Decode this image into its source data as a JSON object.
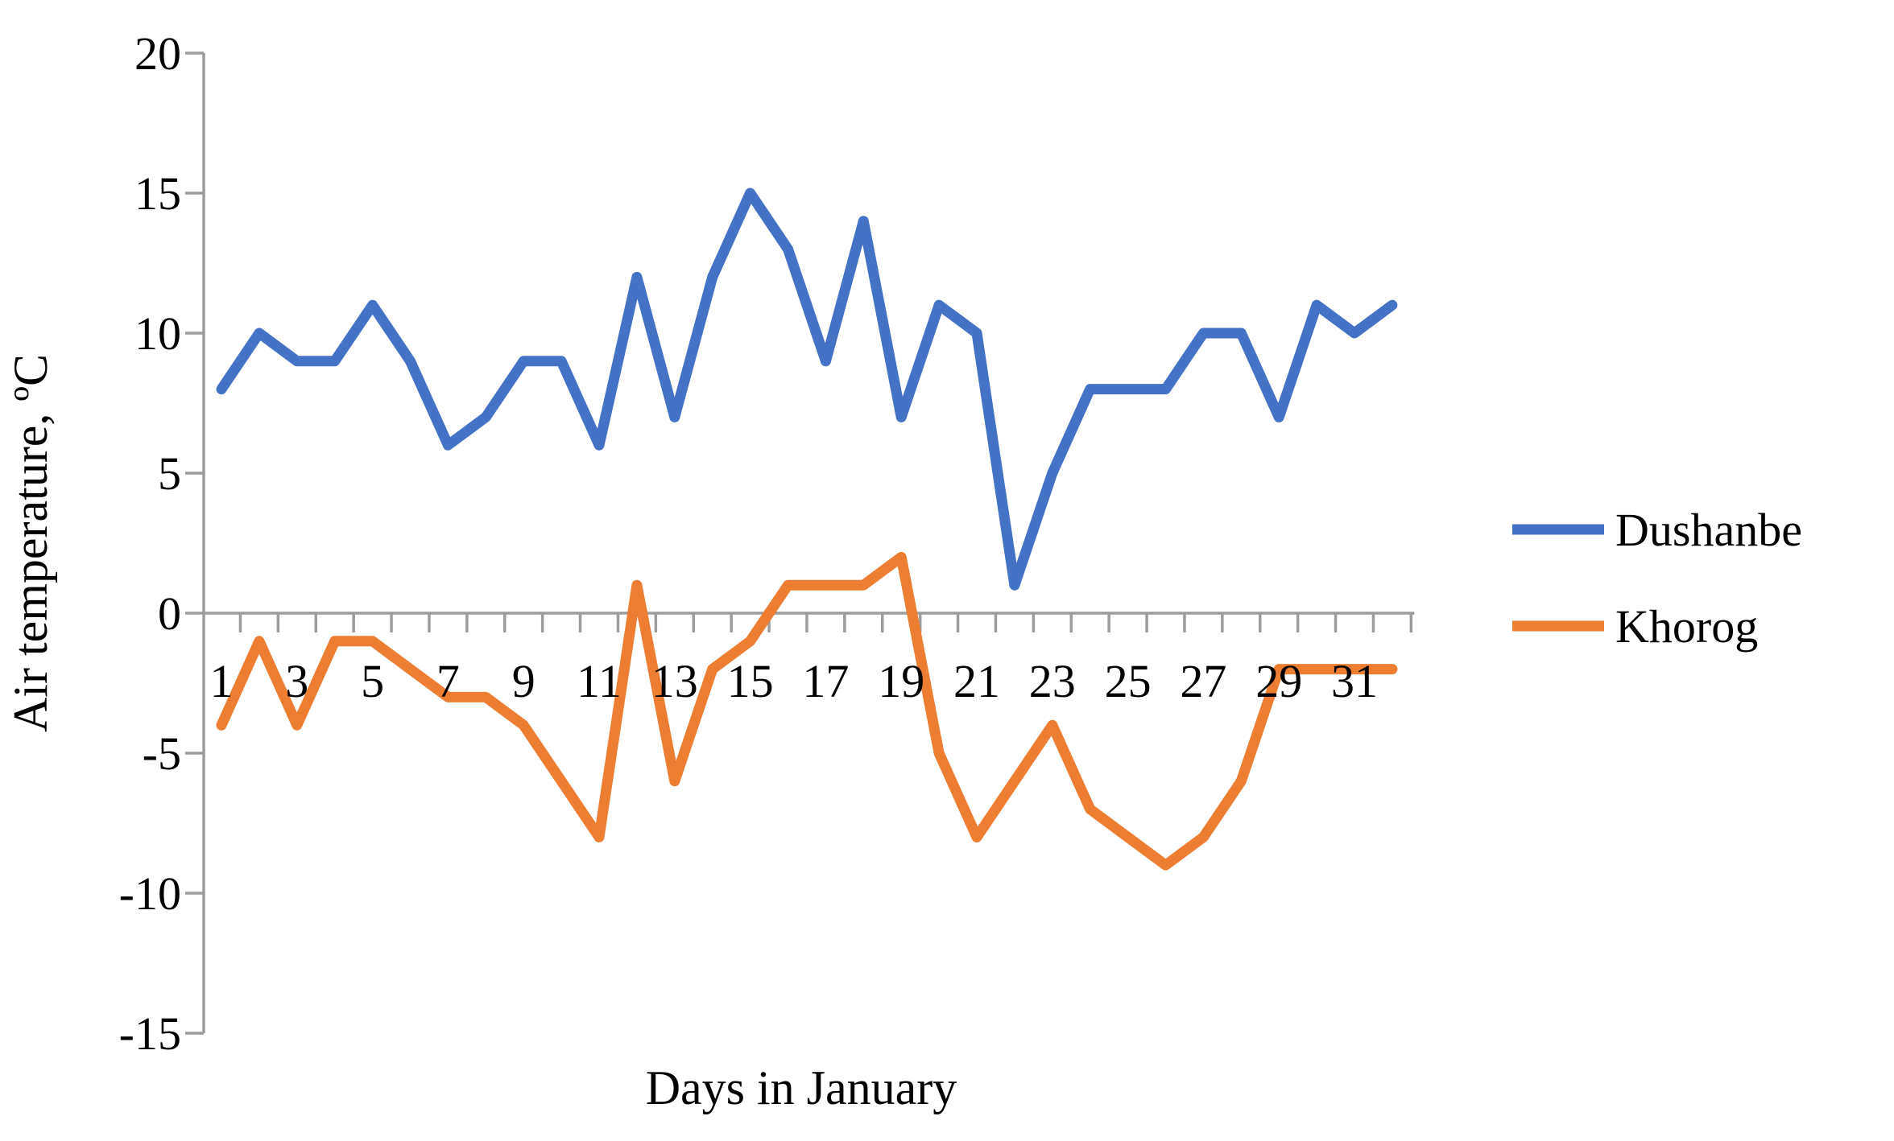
{
  "chart_data": {
    "type": "line",
    "title": "",
    "xlabel": "Days in January",
    "ylabel": "Air temperature, ºC",
    "x": [
      1,
      2,
      3,
      4,
      5,
      6,
      7,
      8,
      9,
      10,
      11,
      12,
      13,
      14,
      15,
      16,
      17,
      18,
      19,
      20,
      21,
      22,
      23,
      24,
      25,
      26,
      27,
      28,
      29,
      30,
      31,
      32
    ],
    "x_tick_labels": [
      "1",
      "3",
      "5",
      "7",
      "9",
      "11",
      "13",
      "15",
      "17",
      "19",
      "21",
      "23",
      "25",
      "27",
      "29",
      "31"
    ],
    "x_labeled_days": [
      1,
      3,
      5,
      7,
      9,
      11,
      13,
      15,
      17,
      19,
      21,
      23,
      25,
      27,
      29,
      31
    ],
    "y_ticks": [
      20,
      15,
      10,
      5,
      0,
      -5,
      -10,
      -15
    ],
    "ylim": [
      -15,
      20
    ],
    "grid": false,
    "legend_position": "right",
    "series": [
      {
        "name": "Dushanbe",
        "color": "#4472C4",
        "values": [
          8,
          10,
          9,
          9,
          11,
          9,
          6,
          7,
          9,
          9,
          6,
          12,
          7,
          12,
          15,
          13,
          9,
          14,
          7,
          11,
          10,
          1,
          5,
          8,
          8,
          8,
          10,
          10,
          7,
          11,
          10,
          11
        ]
      },
      {
        "name": "Khorog",
        "color": "#ED7D31",
        "values": [
          -4,
          -1,
          -4,
          -1,
          -1,
          -2,
          -3,
          -3,
          -4,
          -6,
          -8,
          1,
          -6,
          -2,
          -1,
          1,
          1,
          1,
          2,
          -5,
          -8,
          -6,
          -4,
          -7,
          -8,
          -9,
          -8,
          -6,
          -2,
          -2,
          -2,
          -2
        ]
      }
    ]
  },
  "colors": {
    "axis": "#9C9C9C",
    "text": "#000000",
    "background": "#FFFFFF"
  }
}
